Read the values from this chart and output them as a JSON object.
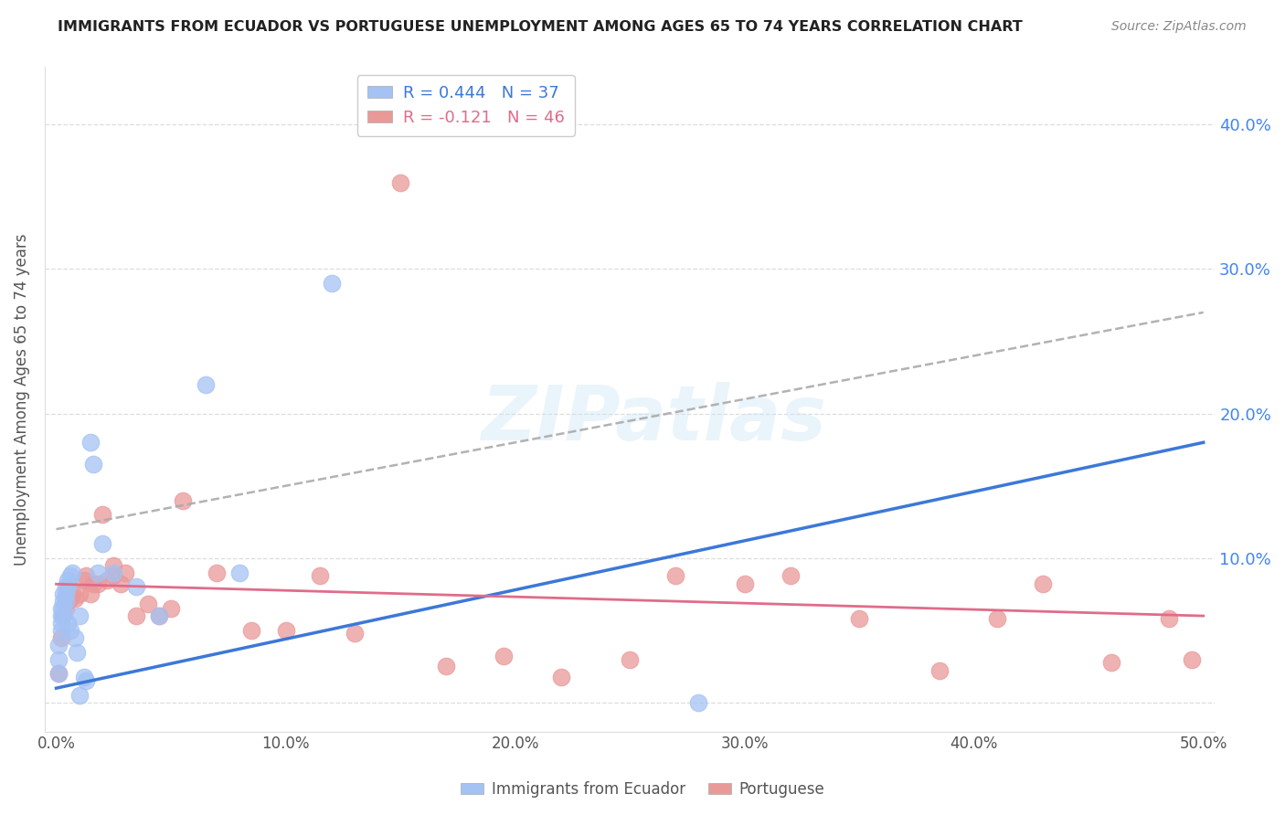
{
  "title": "IMMIGRANTS FROM ECUADOR VS PORTUGUESE UNEMPLOYMENT AMONG AGES 65 TO 74 YEARS CORRELATION CHART",
  "source": "Source: ZipAtlas.com",
  "ylabel": "Unemployment Among Ages 65 to 74 years",
  "ylim": [
    -0.02,
    0.44
  ],
  "xlim": [
    -0.005,
    0.505
  ],
  "blue_color": "#a4c2f4",
  "pink_color": "#ea9999",
  "blue_line_color": "#3c78d8",
  "pink_line_color": "#e06c8a",
  "dash_line_color": "#aaaaaa",
  "right_axis_color": "#4285f4",
  "grid_color": "#dddddd",
  "title_color": "#222222",
  "label_color": "#555555",
  "blue_scatter_x": [
    0.001,
    0.001,
    0.001,
    0.002,
    0.002,
    0.002,
    0.002,
    0.003,
    0.003,
    0.003,
    0.003,
    0.004,
    0.004,
    0.004,
    0.005,
    0.005,
    0.005,
    0.006,
    0.006,
    0.007,
    0.008,
    0.009,
    0.01,
    0.01,
    0.012,
    0.013,
    0.015,
    0.016,
    0.018,
    0.02,
    0.025,
    0.035,
    0.045,
    0.065,
    0.08,
    0.12,
    0.28
  ],
  "blue_scatter_y": [
    0.02,
    0.03,
    0.04,
    0.05,
    0.055,
    0.06,
    0.065,
    0.07,
    0.065,
    0.06,
    0.075,
    0.075,
    0.08,
    0.07,
    0.08,
    0.085,
    0.055,
    0.088,
    0.05,
    0.09,
    0.045,
    0.035,
    0.005,
    0.06,
    0.018,
    0.015,
    0.18,
    0.165,
    0.09,
    0.11,
    0.09,
    0.08,
    0.06,
    0.22,
    0.09,
    0.29,
    0.0
  ],
  "pink_scatter_x": [
    0.001,
    0.002,
    0.003,
    0.004,
    0.005,
    0.005,
    0.006,
    0.007,
    0.008,
    0.01,
    0.012,
    0.013,
    0.015,
    0.016,
    0.018,
    0.02,
    0.022,
    0.025,
    0.025,
    0.028,
    0.03,
    0.035,
    0.04,
    0.045,
    0.05,
    0.055,
    0.07,
    0.085,
    0.1,
    0.115,
    0.13,
    0.15,
    0.17,
    0.195,
    0.22,
    0.25,
    0.27,
    0.3,
    0.32,
    0.35,
    0.385,
    0.41,
    0.43,
    0.46,
    0.485,
    0.495
  ],
  "pink_scatter_y": [
    0.02,
    0.045,
    0.06,
    0.065,
    0.07,
    0.075,
    0.072,
    0.075,
    0.072,
    0.075,
    0.085,
    0.088,
    0.075,
    0.082,
    0.082,
    0.13,
    0.085,
    0.088,
    0.095,
    0.082,
    0.09,
    0.06,
    0.068,
    0.06,
    0.065,
    0.14,
    0.09,
    0.05,
    0.05,
    0.088,
    0.048,
    0.36,
    0.025,
    0.032,
    0.018,
    0.03,
    0.088,
    0.082,
    0.088,
    0.058,
    0.022,
    0.058,
    0.082,
    0.028,
    0.058,
    0.03
  ],
  "watermark_text": "ZIPatlas",
  "legend_label_blue": "Immigrants from Ecuador",
  "legend_label_pink": "Portuguese",
  "legend_R_blue": "R = 0.444",
  "legend_N_blue": "N = 37",
  "legend_R_pink": "R = -0.121",
  "legend_N_pink": "N = 46",
  "blue_trend_x0": 0.0,
  "blue_trend_y0": 0.01,
  "blue_trend_x1": 0.5,
  "blue_trend_y1": 0.18,
  "pink_trend_x0": 0.0,
  "pink_trend_y0": 0.082,
  "pink_trend_x1": 0.5,
  "pink_trend_y1": 0.06,
  "dash_trend_x0": 0.0,
  "dash_trend_y0": 0.12,
  "dash_trend_x1": 0.5,
  "dash_trend_y1": 0.27
}
